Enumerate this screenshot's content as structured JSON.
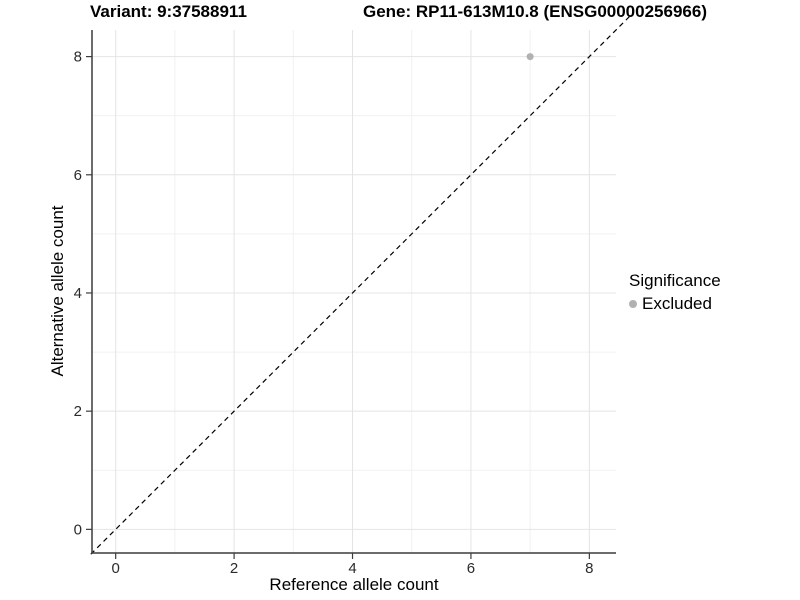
{
  "titles": {
    "left": "Variant: 9:37588911",
    "right": "Gene: RP11-613M10.8 (ENSG00000256966)"
  },
  "chart_data": {
    "type": "scatter",
    "title": "Variant: 9:37588911 / Gene: RP11-613M10.8 (ENSG00000256966)",
    "xlabel": "Reference allele count",
    "ylabel": "Alternative allele count",
    "xlim": [
      -0.4,
      8.45
    ],
    "ylim": [
      -0.4,
      8.45
    ],
    "x_ticks": [
      0,
      2,
      4,
      6,
      8
    ],
    "y_ticks": [
      0,
      2,
      4,
      6,
      8
    ],
    "x_minor_gridlines": [
      1,
      3,
      5,
      7
    ],
    "y_minor_gridlines": [
      1,
      3,
      5,
      7
    ],
    "grid": true,
    "series": [
      {
        "name": "Excluded",
        "points": [
          {
            "x": 7,
            "y": 8
          }
        ]
      }
    ],
    "reference_line": {
      "kind": "identity",
      "slope": 1,
      "intercept": 0,
      "style": "dashed",
      "extent": [
        -0.42,
        8.72
      ]
    },
    "legend": {
      "title": "Significance",
      "position": "right",
      "items": [
        {
          "label": "Excluded",
          "color": "#b1b1b1"
        }
      ]
    }
  },
  "colors": {
    "background": "#ffffff",
    "point": "#b1b1b1",
    "grid_major": "#e4e4e4",
    "grid_minor": "#f1f1f1",
    "axis_line": "#3c3c3c",
    "tick_mark": "#3c3c3c",
    "tick_label": "#2b2b2b",
    "dashed_line": "#000000",
    "title_text": "#000000"
  }
}
